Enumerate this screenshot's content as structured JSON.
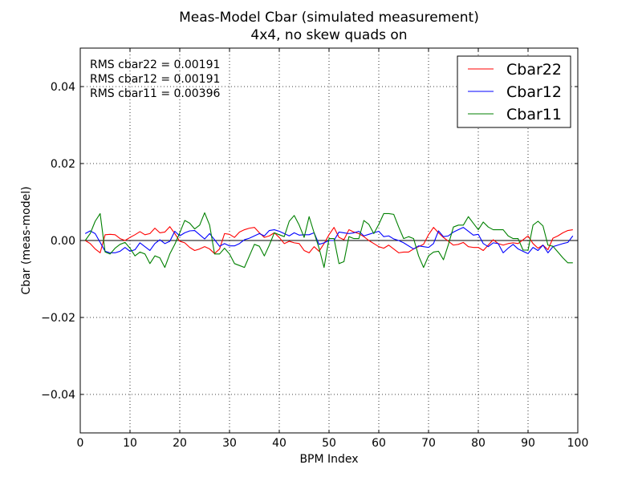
{
  "chart_data": {
    "type": "line",
    "title": "Meas-Model Cbar (simulated measurement)",
    "subtitle": "4x4, no skew quads on",
    "xlabel": "BPM Index",
    "ylabel": "Cbar (meas-model)",
    "xlim": [
      0,
      100
    ],
    "ylim": [
      -0.05,
      0.05
    ],
    "xticks": [
      0,
      10,
      20,
      30,
      40,
      50,
      60,
      70,
      80,
      90,
      100
    ],
    "xtick_labels": [
      "0",
      "10",
      "20",
      "30",
      "40",
      "50",
      "60",
      "70",
      "80",
      "90",
      "100"
    ],
    "yticks": [
      -0.04,
      -0.02,
      0.0,
      0.02,
      0.04
    ],
    "ytick_labels": [
      "−0.04",
      "−0.02",
      "0.00",
      "0.02",
      "0.04"
    ],
    "grid": true,
    "legend_position": "top-right",
    "annotations": [
      "RMS cbar22 = 0.00191",
      "RMS cbar12 = 0.00191",
      "RMS cbar11 = 0.00396"
    ],
    "x": [
      1,
      2,
      3,
      4,
      5,
      6,
      7,
      8,
      9,
      10,
      11,
      12,
      13,
      14,
      15,
      16,
      17,
      18,
      19,
      20,
      21,
      22,
      23,
      24,
      25,
      26,
      27,
      28,
      29,
      30,
      31,
      32,
      33,
      34,
      35,
      36,
      37,
      38,
      39,
      40,
      41,
      42,
      43,
      44,
      45,
      46,
      47,
      48,
      49,
      50,
      51,
      52,
      53,
      54,
      55,
      56,
      57,
      58,
      59,
      60,
      61,
      62,
      63,
      64,
      65,
      66,
      67,
      68,
      69,
      70,
      71,
      72,
      73,
      74,
      75,
      76,
      77,
      78,
      79,
      80,
      81,
      82,
      83,
      84,
      85,
      86,
      87,
      88,
      89,
      90,
      91,
      92,
      93,
      94,
      95,
      96,
      97,
      98,
      99
    ],
    "series": [
      {
        "name": "Cbar22",
        "color": "#ff0000",
        "values": [
          0.0,
          -0.0008,
          -0.0022,
          -0.0032,
          0.0015,
          0.0016,
          0.0015,
          0.0005,
          0.0,
          0.0008,
          0.0015,
          0.0023,
          0.0015,
          0.0018,
          0.0032,
          0.002,
          0.0022,
          0.0036,
          0.0018,
          -0.0002,
          -0.0006,
          -0.0018,
          -0.0026,
          -0.0022,
          -0.0016,
          -0.0022,
          -0.0034,
          -0.0022,
          0.0018,
          0.0016,
          0.0008,
          0.0022,
          0.0028,
          0.0032,
          0.0034,
          0.002,
          0.0008,
          0.0012,
          0.002,
          0.0008,
          -0.0008,
          -0.0002,
          -0.0006,
          -0.0008,
          -0.0026,
          -0.0032,
          -0.0016,
          -0.0028,
          -0.0008,
          0.0015,
          0.0034,
          0.0008,
          0.0002,
          0.0028,
          0.0022,
          0.0018,
          0.001,
          0.0,
          -0.0008,
          -0.0016,
          -0.002,
          -0.0012,
          -0.0022,
          -0.0032,
          -0.003,
          -0.003,
          -0.0022,
          -0.0016,
          -0.001,
          0.0015,
          0.0034,
          0.002,
          0.0008,
          -0.0002,
          -0.0012,
          -0.001,
          -0.0005,
          -0.0016,
          -0.0018,
          -0.0018,
          -0.0026,
          -0.0012,
          0.0002,
          -0.0008,
          -0.0012,
          -0.0008,
          -0.0006,
          -0.0008,
          0.0002,
          0.0012,
          -0.0008,
          -0.002,
          -0.0012,
          -0.0024,
          0.0006,
          0.0012,
          0.002,
          0.0026,
          0.0028
        ]
      },
      {
        "name": "Cbar12",
        "color": "#0000ff",
        "values": [
          0.0018,
          0.0025,
          0.0018,
          -0.0005,
          -0.0028,
          -0.0032,
          -0.0032,
          -0.0028,
          -0.0018,
          -0.0028,
          -0.0024,
          -0.0006,
          -0.0016,
          -0.0026,
          -0.0008,
          0.0002,
          -0.0008,
          -0.0002,
          0.0024,
          0.0012,
          0.002,
          0.0025,
          0.0026,
          0.0015,
          0.0004,
          0.0018,
          0.0002,
          -0.0015,
          -0.0008,
          -0.0014,
          -0.0014,
          -0.0008,
          0.0002,
          0.0006,
          0.0012,
          0.0018,
          0.0012,
          0.0026,
          0.0028,
          0.0024,
          0.0018,
          0.0012,
          0.002,
          0.0014,
          0.0015,
          0.0015,
          0.002,
          -0.001,
          -0.0006,
          0.0,
          0.0,
          0.0022,
          0.002,
          0.0018,
          0.002,
          0.0024,
          0.0012,
          0.0016,
          0.002,
          0.0024,
          0.001,
          0.0012,
          0.0004,
          0.0,
          -0.0006,
          -0.0014,
          -0.0022,
          -0.0014,
          -0.0016,
          -0.0018,
          -0.0008,
          0.0025,
          0.001,
          0.0012,
          0.0022,
          0.0028,
          0.0034,
          0.0024,
          0.0014,
          0.0016,
          -0.0008,
          -0.0016,
          -0.0006,
          -0.0008,
          -0.0032,
          -0.002,
          -0.001,
          -0.0022,
          -0.0028,
          -0.0034,
          -0.0018,
          -0.0026,
          -0.0012,
          -0.0032,
          -0.0016,
          -0.0012,
          -0.0008,
          -0.0005,
          0.0012
        ]
      },
      {
        "name": "Cbar11",
        "color": "#008000",
        "values": [
          0.0,
          0.0018,
          0.005,
          0.007,
          -0.003,
          -0.0035,
          -0.002,
          -0.001,
          -0.0005,
          -0.002,
          -0.004,
          -0.003,
          -0.0035,
          -0.006,
          -0.004,
          -0.0045,
          -0.007,
          -0.0035,
          -0.001,
          0.002,
          0.0052,
          0.0045,
          0.003,
          0.004,
          0.0072,
          0.004,
          -0.0035,
          -0.0035,
          -0.002,
          -0.0035,
          -0.006,
          -0.0065,
          -0.007,
          -0.004,
          -0.001,
          -0.0015,
          -0.004,
          -0.0012,
          0.002,
          0.0015,
          0.001,
          0.005,
          0.0065,
          0.004,
          0.0008,
          0.0062,
          0.002,
          -0.002,
          -0.007,
          0.0005,
          0.0005,
          -0.006,
          -0.0055,
          0.001,
          0.0005,
          0.0005,
          0.0052,
          0.0042,
          0.0018,
          0.0042,
          0.007,
          0.007,
          0.0068,
          0.0035,
          0.0005,
          0.001,
          0.0005,
          -0.004,
          -0.007,
          -0.004,
          -0.003,
          -0.0028,
          -0.005,
          -0.001,
          0.0035,
          0.004,
          0.004,
          0.0062,
          0.0045,
          0.0028,
          0.0048,
          0.0035,
          0.0028,
          0.0028,
          0.0028,
          0.0012,
          0.0005,
          0.0005,
          -0.0025,
          -0.0025,
          0.004,
          0.005,
          0.0038,
          -0.0012,
          -0.0015,
          -0.003,
          -0.0045,
          -0.0058,
          -0.0058
        ]
      }
    ]
  }
}
